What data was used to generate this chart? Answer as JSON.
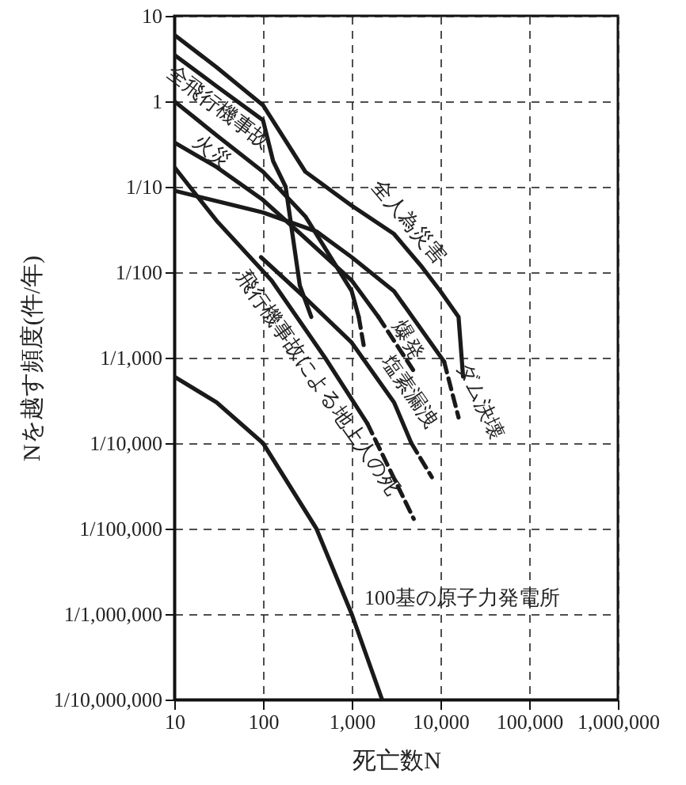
{
  "chart_data": {
    "type": "line",
    "xlabel": "死亡数N",
    "ylabel": "Nを越す頻度(件/年)",
    "log": "xy",
    "grid": true,
    "xlim": [
      10,
      1000000
    ],
    "ylim": [
      1e-07,
      10
    ],
    "xticks": [
      10,
      100,
      {
        "value": 1000,
        "label": "1,000"
      },
      {
        "value": 10000,
        "label": "10,000"
      },
      {
        "value": 100000,
        "label": "100,000"
      },
      {
        "value": 1000000,
        "label": "1,000,000"
      }
    ],
    "yticks": [
      {
        "value": 1e-07,
        "label": "1/10,000,000"
      },
      {
        "value": 1e-06,
        "label": "1/1,000,000"
      },
      {
        "value": 1e-05,
        "label": "1/100,000"
      },
      {
        "value": 0.0001,
        "label": "1/10,000"
      },
      {
        "value": 0.001,
        "label": "1/1,000"
      },
      {
        "value": 0.01,
        "label": "1/100"
      },
      {
        "value": 0.1,
        "label": "1/10"
      },
      1,
      10
    ],
    "series": [
      {
        "name": "全人為災害",
        "color": "#1a1a1a",
        "x": [
          10,
          30,
          100,
          300,
          1000,
          3000,
          6000,
          10000,
          16000,
          18000
        ],
        "values": [
          6,
          2.5,
          0.9,
          0.15,
          0.06,
          0.028,
          0.012,
          0.006,
          0.003,
          0.0006
        ]
      },
      {
        "name": "全飛行機事故",
        "color": "#1a1a1a",
        "x": [
          10,
          30,
          100,
          130,
          180,
          260,
          350
        ],
        "values": [
          3.5,
          1.5,
          0.6,
          0.2,
          0.1,
          0.007,
          0.003
        ]
      },
      {
        "name": "火災",
        "color": "#1a1a1a",
        "x": [
          10,
          30,
          100,
          300,
          1000,
          1200
        ],
        "values": [
          1,
          0.4,
          0.15,
          0.045,
          0.006,
          0.003
        ]
      },
      {
        "name": "爆発",
        "color": "#1a1a1a",
        "x": [
          10,
          30,
          100,
          300,
          1000,
          2000
        ],
        "values": [
          0.33,
          0.17,
          0.07,
          0.025,
          0.008,
          0.003
        ]
      },
      {
        "name": "塩素漏洩",
        "color": "#1a1a1a",
        "x": [
          95,
          300,
          1000,
          3000,
          4700
        ],
        "values": [
          0.015,
          0.005,
          0.0015,
          0.0003,
          0.0001
        ]
      },
      {
        "name": "飛行機事故による地上人の死",
        "color": "#1a1a1a",
        "x": [
          10,
          30,
          125,
          500,
          1500
        ],
        "values": [
          0.17,
          0.04,
          0.008,
          0.001,
          0.00017
        ]
      },
      {
        "name": "ダム決壊",
        "color": "#1a1a1a",
        "x": [
          10,
          100,
          400,
          1000,
          3000,
          11000
        ],
        "values": [
          0.09,
          0.05,
          0.03,
          0.015,
          0.006,
          0.0009
        ]
      },
      {
        "name": "100基の原子力発電所",
        "color": "#1a1a1a",
        "x": [
          10,
          30,
          100,
          400,
          1000,
          2200
        ],
        "values": [
          0.0006,
          0.0003,
          0.0001,
          1e-05,
          1e-06,
          1e-07
        ]
      },
      {
        "color": "#1a1a1a",
        "line_style": "dashed",
        "x": [
          1200,
          1400
        ],
        "values": [
          0.003,
          0.0012
        ]
      },
      {
        "color": "#1a1a1a",
        "line_style": "dashed",
        "x": [
          2000,
          5000
        ],
        "values": [
          0.003,
          0.0007
        ]
      },
      {
        "color": "#1a1a1a",
        "line_style": "dashed",
        "x": [
          4700,
          8000
        ],
        "values": [
          0.0001,
          4e-05
        ]
      },
      {
        "color": "#1a1a1a",
        "line_style": "dashed",
        "x": [
          1500,
          5000
        ],
        "values": [
          0.00017,
          1.3e-05
        ]
      },
      {
        "color": "#1a1a1a",
        "line_style": "dashed",
        "x": [
          11000,
          16000
        ],
        "values": [
          0.0009,
          0.0002
        ]
      }
    ]
  }
}
